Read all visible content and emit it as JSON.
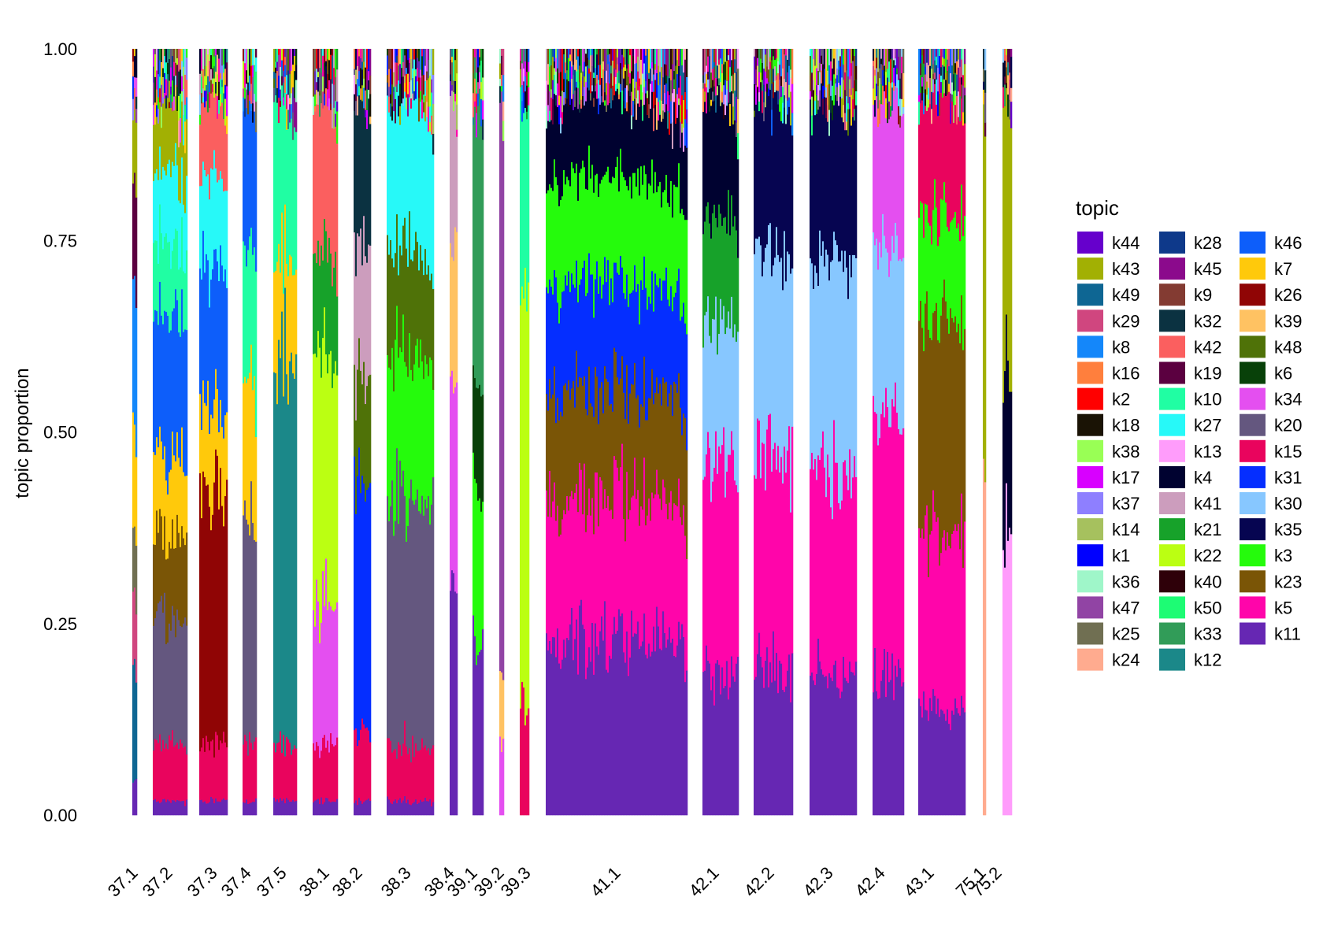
{
  "chart_data": {
    "type": "bar",
    "subtype": "stacked-structure-plot",
    "title": "",
    "xlabel": "",
    "ylabel": "topic proportion",
    "ylim": [
      0,
      1
    ],
    "y_ticks": [
      "0.00",
      "0.25",
      "0.50",
      "0.75",
      "1.00"
    ],
    "grid": false,
    "legend": {
      "title": "topic",
      "placement": "right",
      "columns": [
        [
          {
            "label": "k44",
            "color": "#6600CC"
          },
          {
            "label": "k43",
            "color": "#A2B003"
          },
          {
            "label": "k49",
            "color": "#0E6693"
          },
          {
            "label": "k29",
            "color": "#D0467F"
          },
          {
            "label": "k8",
            "color": "#1487FA"
          },
          {
            "label": "k16",
            "color": "#FF7F3D"
          },
          {
            "label": "k2",
            "color": "#FF0000"
          },
          {
            "label": "k18",
            "color": "#1A1305"
          },
          {
            "label": "k38",
            "color": "#99FF55"
          },
          {
            "label": "k17",
            "color": "#D800FF"
          },
          {
            "label": "k37",
            "color": "#8E7FFF"
          },
          {
            "label": "k14",
            "color": "#A6C15E"
          },
          {
            "label": "k1",
            "color": "#0000FF"
          },
          {
            "label": "k36",
            "color": "#9FF6C9"
          },
          {
            "label": "k47",
            "color": "#9144A4"
          },
          {
            "label": "k25",
            "color": "#706F52"
          },
          {
            "label": "k24",
            "color": "#FFAB8F"
          }
        ],
        [
          {
            "label": "k28",
            "color": "#0E398A"
          },
          {
            "label": "k45",
            "color": "#8B0A8C"
          },
          {
            "label": "k9",
            "color": "#833B32"
          },
          {
            "label": "k32",
            "color": "#0B3241"
          },
          {
            "label": "k42",
            "color": "#FB5F5F"
          },
          {
            "label": "k19",
            "color": "#5B0040"
          },
          {
            "label": "k10",
            "color": "#20FEA3"
          },
          {
            "label": "k27",
            "color": "#27F9F8"
          },
          {
            "label": "k13",
            "color": "#FF9CFB"
          },
          {
            "label": "k4",
            "color": "#000230"
          },
          {
            "label": "k41",
            "color": "#CC9DBD"
          },
          {
            "label": "k21",
            "color": "#17A22A"
          },
          {
            "label": "k22",
            "color": "#BBFF12"
          },
          {
            "label": "k40",
            "color": "#2E0009"
          },
          {
            "label": "k50",
            "color": "#1DFC74"
          },
          {
            "label": "k33",
            "color": "#319C58"
          },
          {
            "label": "k12",
            "color": "#1B8889"
          }
        ],
        [
          {
            "label": "k46",
            "color": "#0D5EFA"
          },
          {
            "label": "k7",
            "color": "#FFC90B"
          },
          {
            "label": "k26",
            "color": "#900505"
          },
          {
            "label": "k39",
            "color": "#FFC262"
          },
          {
            "label": "k48",
            "color": "#4F7208"
          },
          {
            "label": "k6",
            "color": "#084109"
          },
          {
            "label": "k34",
            "color": "#E44FF0"
          },
          {
            "label": "k20",
            "color": "#64577F"
          },
          {
            "label": "k15",
            "color": "#E9045D"
          },
          {
            "label": "k31",
            "color": "#052EFF"
          },
          {
            "label": "k30",
            "color": "#87C7FF"
          },
          {
            "label": "k35",
            "color": "#060551"
          },
          {
            "label": "k3",
            "color": "#25FB0C"
          },
          {
            "label": "k23",
            "color": "#7A5506"
          },
          {
            "label": "k5",
            "color": "#FF05AA"
          },
          {
            "label": "k11",
            "color": "#6627B3"
          }
        ]
      ]
    },
    "categories": [
      "37.1",
      "37.2",
      "37.3",
      "37.4",
      "37.5",
      "38.1",
      "38.2",
      "38.3",
      "38.4",
      "39.1",
      "39.2",
      "39.3",
      "41.1",
      "42.1",
      "42.2",
      "42.3",
      "42.4",
      "43.1",
      "75.1",
      "75.2"
    ],
    "groups": [
      {
        "label": "37.1",
        "dominant": [
          {
            "topic": "k11",
            "value": 0.05
          },
          {
            "topic": "k49",
            "value": 0.15
          },
          {
            "topic": "k29",
            "value": 0.1
          },
          {
            "topic": "k25",
            "value": 0.1
          },
          {
            "topic": "k7",
            "value": 0.15
          },
          {
            "topic": "k8",
            "value": 0.2
          },
          {
            "topic": "k19",
            "value": 0.15
          },
          {
            "topic": "k43",
            "value": 0.1
          }
        ]
      },
      {
        "label": "37.2",
        "dominant": [
          {
            "topic": "k11",
            "value": 0.02
          },
          {
            "topic": "k15",
            "value": 0.08
          },
          {
            "topic": "k20",
            "value": 0.18
          },
          {
            "topic": "k23",
            "value": 0.12
          },
          {
            "topic": "k7",
            "value": 0.12
          },
          {
            "topic": "k46",
            "value": 0.2
          },
          {
            "topic": "k10",
            "value": 0.1
          },
          {
            "topic": "k27",
            "value": 0.1
          },
          {
            "topic": "k43",
            "value": 0.08
          }
        ]
      },
      {
        "label": "37.3",
        "dominant": [
          {
            "topic": "k11",
            "value": 0.02
          },
          {
            "topic": "k15",
            "value": 0.08
          },
          {
            "topic": "k26",
            "value": 0.35
          },
          {
            "topic": "k7",
            "value": 0.12
          },
          {
            "topic": "k46",
            "value": 0.2
          },
          {
            "topic": "k27",
            "value": 0.13
          },
          {
            "topic": "k42",
            "value": 0.1
          }
        ]
      },
      {
        "label": "37.4",
        "dominant": [
          {
            "topic": "k11",
            "value": 0.02
          },
          {
            "topic": "k15",
            "value": 0.08
          },
          {
            "topic": "k20",
            "value": 0.3
          },
          {
            "topic": "k7",
            "value": 0.2
          },
          {
            "topic": "k10",
            "value": 0.2
          },
          {
            "topic": "k46",
            "value": 0.2
          }
        ]
      },
      {
        "label": "37.5",
        "dominant": [
          {
            "topic": "k11",
            "value": 0.02
          },
          {
            "topic": "k15",
            "value": 0.08
          },
          {
            "topic": "k12",
            "value": 0.55
          },
          {
            "topic": "k7",
            "value": 0.15
          },
          {
            "topic": "k10",
            "value": 0.2
          }
        ]
      },
      {
        "label": "38.1",
        "dominant": [
          {
            "topic": "k11",
            "value": 0.02
          },
          {
            "topic": "k15",
            "value": 0.08
          },
          {
            "topic": "k34",
            "value": 0.2
          },
          {
            "topic": "k22",
            "value": 0.35
          },
          {
            "topic": "k21",
            "value": 0.15
          },
          {
            "topic": "k42",
            "value": 0.2
          }
        ]
      },
      {
        "label": "38.2",
        "dominant": [
          {
            "topic": "k11",
            "value": 0.02
          },
          {
            "topic": "k15",
            "value": 0.1
          },
          {
            "topic": "k31",
            "value": 0.35
          },
          {
            "topic": "k48",
            "value": 0.15
          },
          {
            "topic": "k41",
            "value": 0.18
          },
          {
            "topic": "k32",
            "value": 0.2
          }
        ]
      },
      {
        "label": "38.3",
        "dominant": [
          {
            "topic": "k11",
            "value": 0.02
          },
          {
            "topic": "k15",
            "value": 0.08
          },
          {
            "topic": "k20",
            "value": 0.35
          },
          {
            "topic": "k3",
            "value": 0.2
          },
          {
            "topic": "k48",
            "value": 0.15
          },
          {
            "topic": "k27",
            "value": 0.2
          }
        ]
      },
      {
        "label": "38.4",
        "dominant": [
          {
            "topic": "k11",
            "value": 0.3
          },
          {
            "topic": "k34",
            "value": 0.3
          },
          {
            "topic": "k39",
            "value": 0.2
          },
          {
            "topic": "k41",
            "value": 0.2
          }
        ]
      },
      {
        "label": "39.1",
        "dominant": [
          {
            "topic": "k11",
            "value": 0.25
          },
          {
            "topic": "k3",
            "value": 0.2
          },
          {
            "topic": "k6",
            "value": 0.15
          },
          {
            "topic": "k33",
            "value": 0.4
          }
        ]
      },
      {
        "label": "39.2",
        "dominant": [
          {
            "topic": "k34",
            "value": 0.1
          },
          {
            "topic": "k39",
            "value": 0.1
          },
          {
            "topic": "k47",
            "value": 0.8
          }
        ]
      },
      {
        "label": "39.3",
        "dominant": [
          {
            "topic": "k15",
            "value": 0.15
          },
          {
            "topic": "k22",
            "value": 0.6
          },
          {
            "topic": "k10",
            "value": 0.25
          }
        ]
      },
      {
        "label": "41.1",
        "dominant": [
          {
            "topic": "k11",
            "value": 0.25
          },
          {
            "topic": "k5",
            "value": 0.2
          },
          {
            "topic": "k23",
            "value": 0.15
          },
          {
            "topic": "k31",
            "value": 0.15
          },
          {
            "topic": "k3",
            "value": 0.15
          },
          {
            "topic": "k4",
            "value": 0.1
          }
        ]
      },
      {
        "label": "42.1",
        "dominant": [
          {
            "topic": "k11",
            "value": 0.2
          },
          {
            "topic": "k5",
            "value": 0.3
          },
          {
            "topic": "k30",
            "value": 0.2
          },
          {
            "topic": "k21",
            "value": 0.15
          },
          {
            "topic": "k4",
            "value": 0.15
          }
        ]
      },
      {
        "label": "42.2",
        "dominant": [
          {
            "topic": "k11",
            "value": 0.2
          },
          {
            "topic": "k5",
            "value": 0.3
          },
          {
            "topic": "k30",
            "value": 0.3
          },
          {
            "topic": "k35",
            "value": 0.2
          }
        ]
      },
      {
        "label": "42.3",
        "dominant": [
          {
            "topic": "k11",
            "value": 0.2
          },
          {
            "topic": "k5",
            "value": 0.3
          },
          {
            "topic": "k30",
            "value": 0.3
          },
          {
            "topic": "k35",
            "value": 0.2
          }
        ]
      },
      {
        "label": "42.4",
        "dominant": [
          {
            "topic": "k11",
            "value": 0.2
          },
          {
            "topic": "k5",
            "value": 0.35
          },
          {
            "topic": "k30",
            "value": 0.25
          },
          {
            "topic": "k34",
            "value": 0.2
          }
        ]
      },
      {
        "label": "43.1",
        "dominant": [
          {
            "topic": "k11",
            "value": 0.15
          },
          {
            "topic": "k5",
            "value": 0.25
          },
          {
            "topic": "k23",
            "value": 0.3
          },
          {
            "topic": "k3",
            "value": 0.15
          },
          {
            "topic": "k15",
            "value": 0.15
          }
        ]
      },
      {
        "label": "75.1",
        "dominant": [
          {
            "topic": "k24",
            "value": 0.5
          },
          {
            "topic": "k43",
            "value": 0.5
          }
        ]
      },
      {
        "label": "75.2",
        "dominant": [
          {
            "topic": "k13",
            "value": 0.4
          },
          {
            "topic": "k4",
            "value": 0.2
          },
          {
            "topic": "k43",
            "value": 0.4
          }
        ]
      }
    ]
  }
}
